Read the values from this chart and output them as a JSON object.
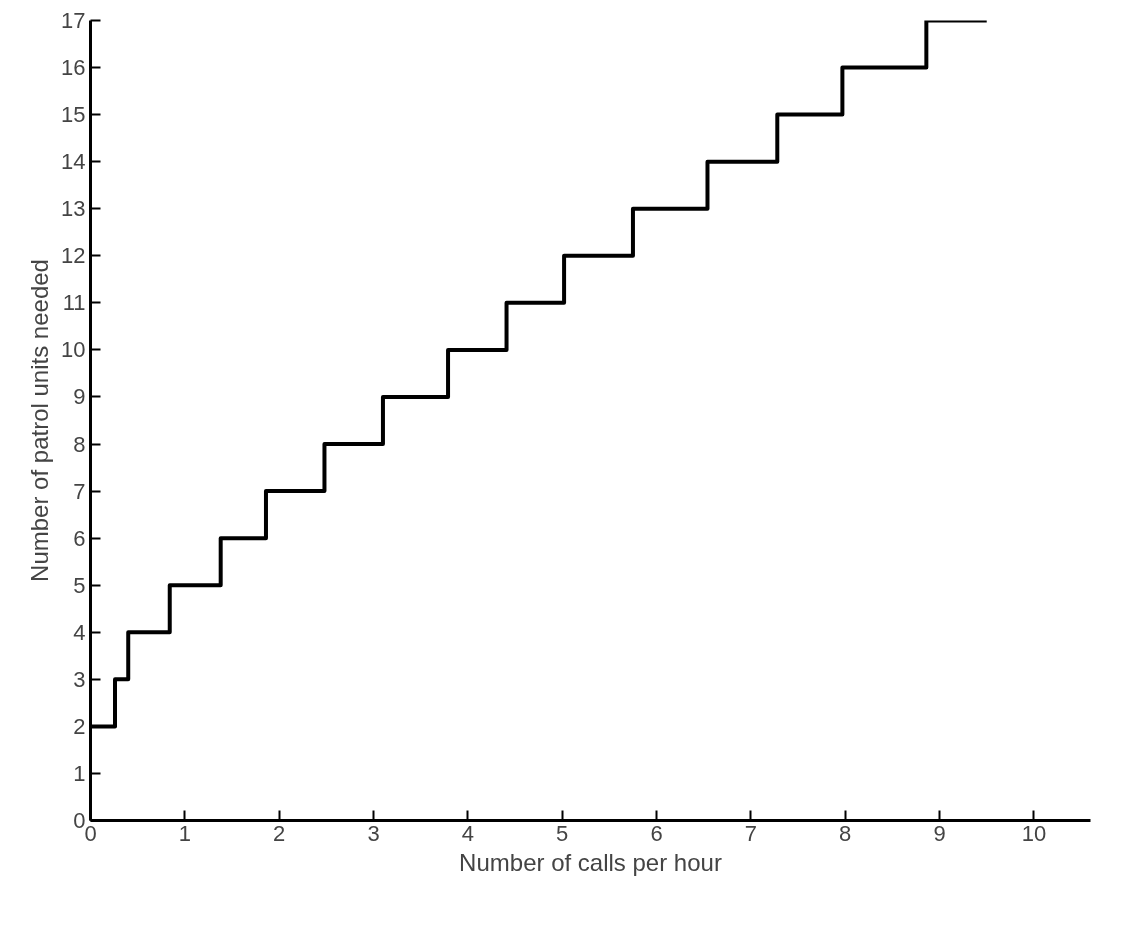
{
  "chart_data": {
    "type": "step",
    "xlabel": "Number of calls per hour",
    "ylabel": "Number of patrol units needed",
    "x": [
      0,
      0.26,
      0.4,
      0.84,
      1.38,
      1.86,
      2.48,
      3.1,
      3.79,
      4.41,
      5.02,
      5.75,
      6.54,
      7.28,
      7.97,
      8.86,
      9.5
    ],
    "series": [
      {
        "color": "#000000",
        "values": [
          2,
          3,
          4,
          5,
          6,
          7,
          8,
          9,
          10,
          11,
          12,
          13,
          14,
          15,
          16,
          17,
          17
        ]
      }
    ],
    "xlim": [
      0,
      10.6
    ],
    "ylim": [
      0,
      17
    ],
    "xticks": [
      0,
      1,
      2,
      3,
      4,
      5,
      6,
      7,
      8,
      9,
      10
    ],
    "yticks": [
      0,
      1,
      2,
      3,
      4,
      5,
      6,
      7,
      8,
      9,
      10,
      11,
      12,
      13,
      14,
      15,
      16,
      17
    ],
    "grid": false
  }
}
